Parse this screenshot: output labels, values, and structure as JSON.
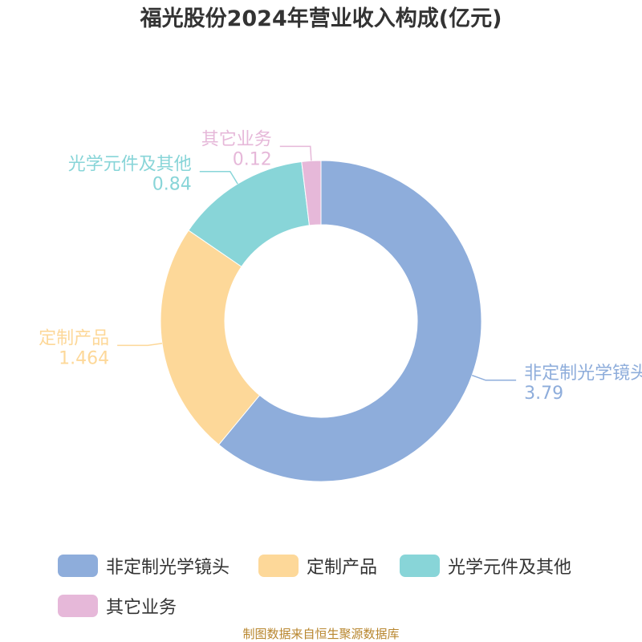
{
  "chart_data": {
    "type": "pie",
    "title": "福光股份2024年营业收入构成(亿元)",
    "categories": [
      "非定制光学镜头",
      "定制产品",
      "光学元件及其他",
      "其它业务"
    ],
    "values": [
      3.79,
      1.464,
      0.84,
      0.12
    ],
    "value_labels": [
      "3.79",
      "1.464",
      "0.84",
      "0.12"
    ],
    "colors": [
      "#8eaddb",
      "#fdd899",
      "#88d5d8",
      "#e6b8d9"
    ],
    "donut": true,
    "legend_position": "bottom"
  },
  "footer": {
    "source": "制图数据来自恒生聚源数据库"
  }
}
